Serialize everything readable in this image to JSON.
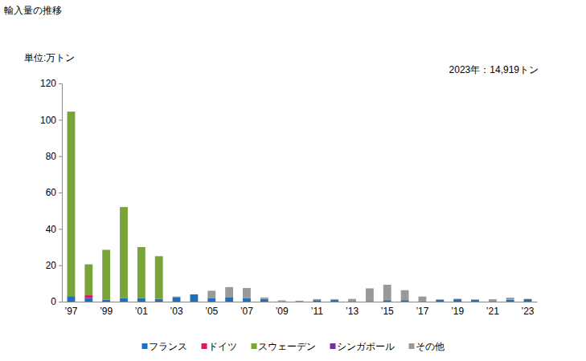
{
  "chart_data": {
    "type": "bar",
    "stacked": true,
    "title": "輸入量の推移",
    "subtitle": "単位:万トン",
    "annotation": "2023年：14,919トン",
    "categories": [
      "’97",
      null,
      "’99",
      null,
      "’01",
      null,
      "’03",
      null,
      "’05",
      null,
      "’07",
      null,
      "’09",
      null,
      "’11",
      null,
      "’13",
      null,
      "’15",
      null,
      "’17",
      null,
      "’19",
      null,
      "’21",
      null,
      "’23"
    ],
    "series": [
      {
        "name": "フランス",
        "color": "#1f6fbf",
        "values": [
          3,
          2,
          1,
          2,
          2,
          1.5,
          2.5,
          4,
          2,
          2.5,
          2,
          1.5,
          0.1,
          0,
          0.8,
          1,
          0.3,
          0.3,
          0.8,
          0.8,
          0.3,
          1,
          1.3,
          1,
          0.3,
          1,
          1.4
        ]
      },
      {
        "name": "ドイツ",
        "color": "#d81b60",
        "values": [
          0,
          1.5,
          0,
          0,
          0,
          0,
          0,
          0,
          0,
          0,
          0,
          0,
          0,
          0,
          0,
          0,
          0,
          0,
          0,
          0,
          0,
          0,
          0,
          0,
          0,
          0,
          0
        ]
      },
      {
        "name": "スウェーデン",
        "color": "#7aa33a",
        "values": [
          101.5,
          17,
          27.5,
          50,
          28,
          23.5,
          0,
          0,
          0,
          0,
          0,
          0,
          0,
          0,
          0,
          0,
          0,
          0,
          0,
          0,
          0,
          0,
          0,
          0,
          0,
          0,
          0
        ]
      },
      {
        "name": "シンガポール",
        "color": "#7030a0",
        "values": [
          0,
          0,
          0,
          0,
          0,
          0,
          0,
          0,
          0,
          0,
          0,
          0,
          0,
          0,
          0,
          0,
          0,
          0,
          0,
          0,
          0,
          0,
          0,
          0,
          0,
          0,
          0
        ]
      },
      {
        "name": "その他",
        "color": "#999999",
        "values": [
          0,
          0,
          0,
          0,
          0,
          0,
          0.3,
          0,
          4,
          5.5,
          5.5,
          0.8,
          0.6,
          0.5,
          0.6,
          0.4,
          1.2,
          7,
          8.5,
          5.5,
          2.5,
          0.3,
          0.3,
          0.3,
          1,
          1.2,
          0.09
        ]
      }
    ],
    "ylim": [
      0,
      120
    ],
    "yticks": [
      0,
      20,
      40,
      60,
      80,
      100,
      120
    ],
    "grid": false,
    "legend": "bottom"
  }
}
